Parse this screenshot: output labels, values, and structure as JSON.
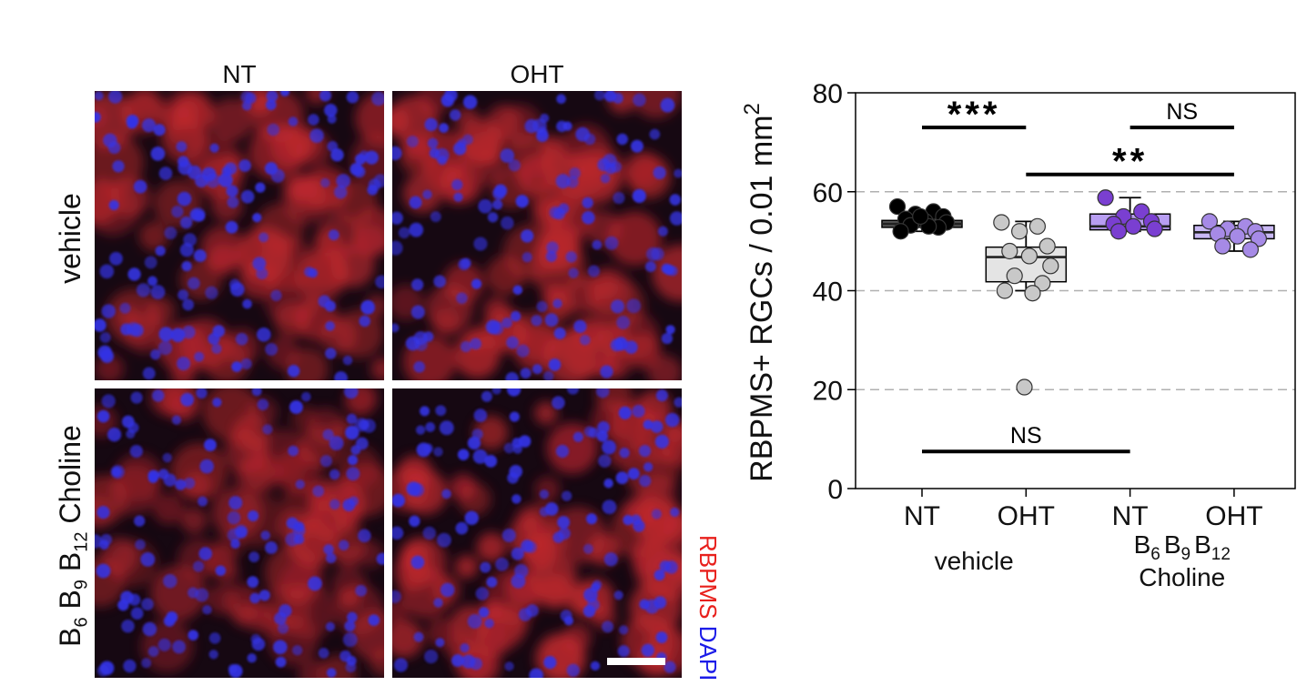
{
  "figure": {
    "columns": [
      "NT",
      "OHT"
    ],
    "rows": [
      {
        "label": "vehicle"
      },
      {
        "label_parts": [
          {
            "base": "B",
            "sub": "6"
          },
          {
            "base": "B",
            "sub": "9"
          },
          {
            "base": "B",
            "sub": "12"
          },
          {
            "base": "Choline",
            "sub": ""
          }
        ]
      }
    ],
    "stain_labels": [
      {
        "text": "RBPMS",
        "color": "#e8201c"
      },
      {
        "text": "DAPI",
        "color": "#1c1ce8"
      }
    ],
    "colors": {
      "tissue_red": "#c0282e",
      "nucleus_blue": "#3434e6",
      "background": "#160812"
    }
  },
  "chart_data": {
    "type": "box",
    "ylabel": "RBPMS+ RGCs / 0.01 mm",
    "ylabel_sup": "2",
    "ylim": [
      0,
      80
    ],
    "yticks": [
      0,
      20,
      40,
      60,
      80
    ],
    "grid": "dashed horizontal at 20, 40, 60",
    "categories": [
      "NT",
      "OHT",
      "NT",
      "OHT"
    ],
    "group_labels": [
      {
        "text": "vehicle",
        "spans": [
          0,
          1
        ]
      },
      {
        "parts": [
          {
            "base": "B",
            "sub": "6"
          },
          {
            "base": "B",
            "sub": "9"
          },
          {
            "base": "B",
            "sub": "12"
          }
        ],
        "line2": "Choline",
        "spans": [
          2,
          3
        ]
      }
    ],
    "boxes": [
      {
        "q1": 52.8,
        "median": 53.5,
        "q3": 54.2,
        "whisker_low": 52.0,
        "whisker_high": 55.5,
        "fill": "#5a5a5a"
      },
      {
        "q1": 41.8,
        "median": 46.8,
        "q3": 48.8,
        "whisker_low": 40.0,
        "whisker_high": 54.0,
        "fill": "#e4e4e4"
      },
      {
        "q1": 52.3,
        "median": 53.0,
        "q3": 55.5,
        "whisker_low": 52.0,
        "whisker_high": 58.8,
        "fill": "#b89ef2"
      },
      {
        "q1": 50.5,
        "median": 51.8,
        "q3": 53.2,
        "whisker_low": 48.0,
        "whisker_high": 54.0,
        "fill": "#c9b8f4"
      }
    ],
    "points": [
      {
        "values": [
          57.0,
          56.0,
          55.5,
          55.0,
          54.5,
          54.0,
          53.8,
          53.2,
          52.8,
          52.0,
          53.0,
          55.0
        ],
        "fill": "#000000"
      },
      {
        "values": [
          53.8,
          53.0,
          52.0,
          49.0,
          48.0,
          47.0,
          45.0,
          43.0,
          41.5,
          40.0,
          39.5,
          20.5
        ],
        "fill": "#c8c8c8"
      },
      {
        "values": [
          58.8,
          56.0,
          55.0,
          54.0,
          53.5,
          53.0,
          52.5,
          52.0
        ],
        "fill": "#7a3fd1"
      },
      {
        "values": [
          54.0,
          53.0,
          52.5,
          52.0,
          51.5,
          51.0,
          50.5,
          49.0,
          48.3
        ],
        "fill": "#a68ae6"
      }
    ],
    "significance": [
      {
        "label": "***",
        "from": 0,
        "to": 1,
        "y": 73,
        "style": "star"
      },
      {
        "label": "NS",
        "from": 2,
        "to": 3,
        "y": 73,
        "style": "text"
      },
      {
        "label": "**",
        "from": 1,
        "to": 3,
        "y": 63.5,
        "style": "star"
      },
      {
        "label": "NS",
        "from": 0,
        "to": 2,
        "y": 7.5,
        "style": "text"
      }
    ]
  }
}
